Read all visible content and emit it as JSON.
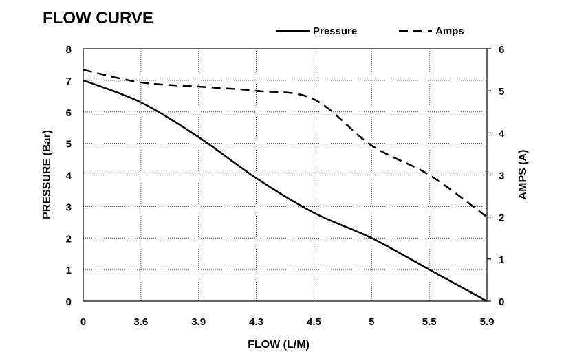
{
  "chart_data": {
    "type": "line",
    "title": "FLOW CURVE",
    "xlabel": "FLOW (L/M)",
    "ylabel": "PRESSURE (Bar)",
    "y2label": "AMPS (A)",
    "x_tick_labels": [
      "0",
      "3.6",
      "3.9",
      "4.3",
      "4.5",
      "5",
      "5.5",
      "5.9"
    ],
    "ylim": [
      0,
      8
    ],
    "y_ticks": [
      "0",
      "1",
      "2",
      "3",
      "4",
      "5",
      "6",
      "7",
      "8"
    ],
    "y2lim": [
      0,
      6
    ],
    "y2_ticks": [
      "0",
      "1",
      "2",
      "3",
      "4",
      "5",
      "6"
    ],
    "grid": true,
    "legend_position": "top-right",
    "series": [
      {
        "name": "Pressure",
        "axis": "left",
        "style": "solid",
        "color": "#000000",
        "values": [
          7.0,
          6.3,
          5.2,
          3.9,
          2.8,
          2.0,
          1.0,
          0.0
        ]
      },
      {
        "name": "Amps",
        "axis": "right",
        "style": "dashed",
        "color": "#000000",
        "values": [
          5.5,
          5.2,
          5.1,
          5.0,
          4.8,
          3.7,
          3.0,
          2.0
        ]
      }
    ]
  }
}
